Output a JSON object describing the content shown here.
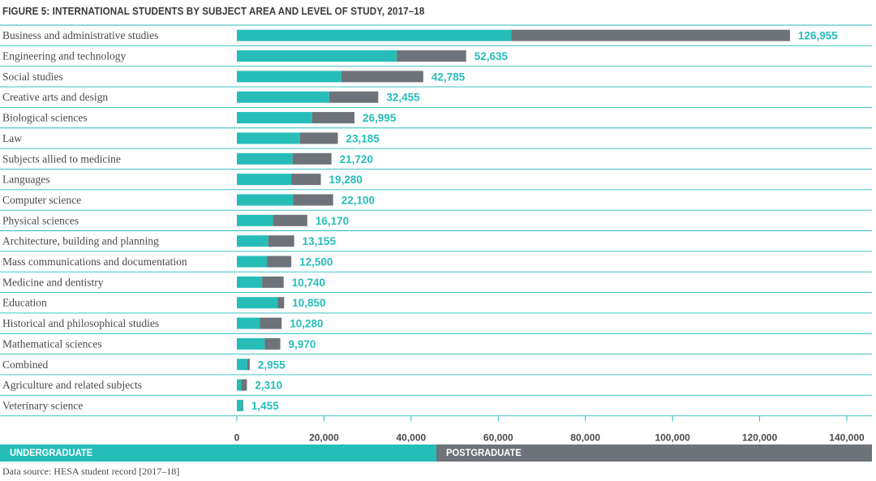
{
  "title": "FIGURE 5: INTERNATIONAL STUDENTS BY SUBJECT AREA AND LEVEL OF STUDY, 2017–18",
  "source": "Data source: HESA student record [2017–18]",
  "colors": {
    "undergraduate": "#26bdb9",
    "postgraduate": "#6d7378",
    "value_label": "#26bdb9",
    "divider": "#26bdb9"
  },
  "legend": {
    "undergraduate": "UNDERGRADUATE",
    "postgraduate": "POSTGRADUATE"
  },
  "chart_data": {
    "type": "bar",
    "orientation": "horizontal",
    "stacked": true,
    "title": "FIGURE 5: INTERNATIONAL STUDENTS BY SUBJECT AREA AND LEVEL OF STUDY, 2017–18",
    "xlim": [
      0,
      140000
    ],
    "xticks": [
      "0",
      "20,000",
      "40,000",
      "60,000",
      "80,000",
      "100,000",
      "120,000",
      "140,000"
    ],
    "xtick_values": [
      0,
      20000,
      40000,
      60000,
      80000,
      100000,
      120000,
      140000
    ],
    "categories": [
      "Business and administrative studies",
      "Engineering and technology",
      "Social studies",
      "Creative arts and design",
      "Biological sciences",
      "Law",
      "Subjects allied to medicine",
      "Languages",
      "Computer science",
      "Physical sciences",
      "Architecture, building and planning",
      "Mass communications and documentation",
      "Medicine and dentistry",
      "Education",
      "Historical and philosophical studies",
      "Mathematical sciences",
      "Combined",
      "Agriculture and related subjects",
      "Veterinary science"
    ],
    "series": [
      {
        "name": "UNDERGRADUATE",
        "values": [
          63000,
          36700,
          24000,
          21200,
          17300,
          14500,
          12800,
          12500,
          12900,
          8300,
          7200,
          6900,
          5800,
          9400,
          5300,
          6400,
          2400,
          1000,
          1300
        ]
      },
      {
        "name": "POSTGRADUATE",
        "values": [
          63955,
          15935,
          18785,
          11255,
          9695,
          8685,
          8920,
          6780,
          9200,
          7870,
          5955,
          5600,
          4940,
          1450,
          4980,
          3570,
          555,
          1310,
          155
        ]
      }
    ],
    "totals": [
      "126,955",
      "52,635",
      "42,785",
      "32,455",
      "26,995",
      "23,185",
      "21,720",
      "19,280",
      "22,100",
      "16,170",
      "13,155",
      "12,500",
      "10,740",
      "10,850",
      "10,280",
      "9,970",
      "2,955",
      "2,310",
      "1,455"
    ],
    "legend_position": "bottom",
    "grid": false
  }
}
